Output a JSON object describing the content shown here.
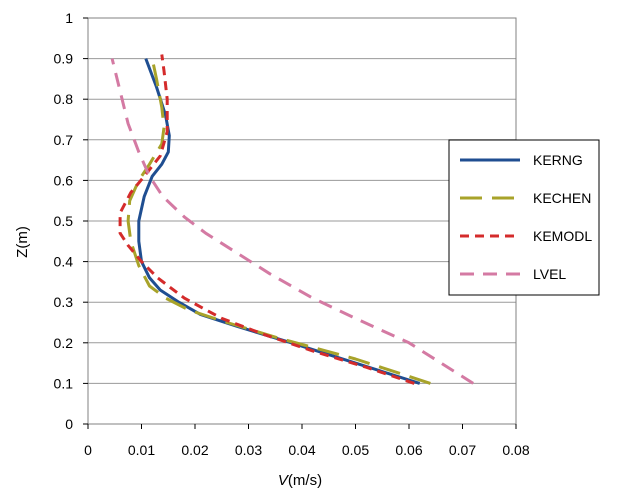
{
  "chart_data": {
    "type": "line",
    "xlabel_italic": "V",
    "xlabel_rest": "(m/s)",
    "ylabel": "Z(m)",
    "xlim": [
      0,
      0.08
    ],
    "ylim": [
      0,
      1
    ],
    "xticks": [
      "0",
      "0.01",
      "0.02",
      "0.03",
      "0.04",
      "0.05",
      "0.06",
      "0.07",
      "0.08"
    ],
    "yticks": [
      "0",
      "0.1",
      "0.2",
      "0.3",
      "0.4",
      "0.5",
      "0.6",
      "0.7",
      "0.8",
      "0.9",
      "1"
    ],
    "grid": "horizontal",
    "legend_position": "right",
    "series": [
      {
        "name": "KERNG",
        "color": "#1f4e91",
        "dash": "solid",
        "points": [
          [
            0.062,
            0.1
          ],
          [
            0.05,
            0.15
          ],
          [
            0.038,
            0.2
          ],
          [
            0.028,
            0.24
          ],
          [
            0.021,
            0.27
          ],
          [
            0.017,
            0.3
          ],
          [
            0.0135,
            0.33
          ],
          [
            0.0115,
            0.36
          ],
          [
            0.01,
            0.4
          ],
          [
            0.0095,
            0.45
          ],
          [
            0.0095,
            0.5
          ],
          [
            0.0105,
            0.56
          ],
          [
            0.012,
            0.61
          ],
          [
            0.0138,
            0.64
          ],
          [
            0.015,
            0.67
          ],
          [
            0.0152,
            0.71
          ],
          [
            0.0145,
            0.76
          ],
          [
            0.0128,
            0.83
          ],
          [
            0.0108,
            0.9
          ]
        ]
      },
      {
        "name": "KECHEN",
        "color": "#a8a32a",
        "dash": "long-dash",
        "points": [
          [
            0.064,
            0.1
          ],
          [
            0.05,
            0.16
          ],
          [
            0.036,
            0.21
          ],
          [
            0.026,
            0.25
          ],
          [
            0.019,
            0.28
          ],
          [
            0.0145,
            0.31
          ],
          [
            0.0115,
            0.34
          ],
          [
            0.0095,
            0.39
          ],
          [
            0.008,
            0.45
          ],
          [
            0.0075,
            0.5
          ],
          [
            0.0078,
            0.55
          ],
          [
            0.0095,
            0.6
          ],
          [
            0.0115,
            0.64
          ],
          [
            0.0138,
            0.69
          ],
          [
            0.0142,
            0.73
          ],
          [
            0.0138,
            0.78
          ],
          [
            0.0128,
            0.85
          ],
          [
            0.012,
            0.9
          ]
        ]
      },
      {
        "name": "KEMODL",
        "color": "#d42b2b",
        "dash": "dash",
        "points": [
          [
            0.061,
            0.1
          ],
          [
            0.052,
            0.14
          ],
          [
            0.042,
            0.18
          ],
          [
            0.033,
            0.22
          ],
          [
            0.025,
            0.26
          ],
          [
            0.018,
            0.31
          ],
          [
            0.013,
            0.36
          ],
          [
            0.01,
            0.4
          ],
          [
            0.0075,
            0.44
          ],
          [
            0.006,
            0.47
          ],
          [
            0.006,
            0.52
          ],
          [
            0.008,
            0.57
          ],
          [
            0.0105,
            0.61
          ],
          [
            0.0135,
            0.66
          ],
          [
            0.0148,
            0.72
          ],
          [
            0.0148,
            0.8
          ],
          [
            0.0142,
            0.87
          ],
          [
            0.0138,
            0.91
          ]
        ]
      },
      {
        "name": "LVEL",
        "color": "#d47aa3",
        "dash": "medium-dash",
        "points": [
          [
            0.072,
            0.1
          ],
          [
            0.06,
            0.2
          ],
          [
            0.05,
            0.26
          ],
          [
            0.042,
            0.31
          ],
          [
            0.034,
            0.37
          ],
          [
            0.028,
            0.42
          ],
          [
            0.022,
            0.47
          ],
          [
            0.018,
            0.51
          ],
          [
            0.014,
            0.56
          ],
          [
            0.0115,
            0.61
          ],
          [
            0.0095,
            0.67
          ],
          [
            0.0075,
            0.74
          ],
          [
            0.006,
            0.82
          ],
          [
            0.0045,
            0.9
          ]
        ]
      }
    ]
  }
}
